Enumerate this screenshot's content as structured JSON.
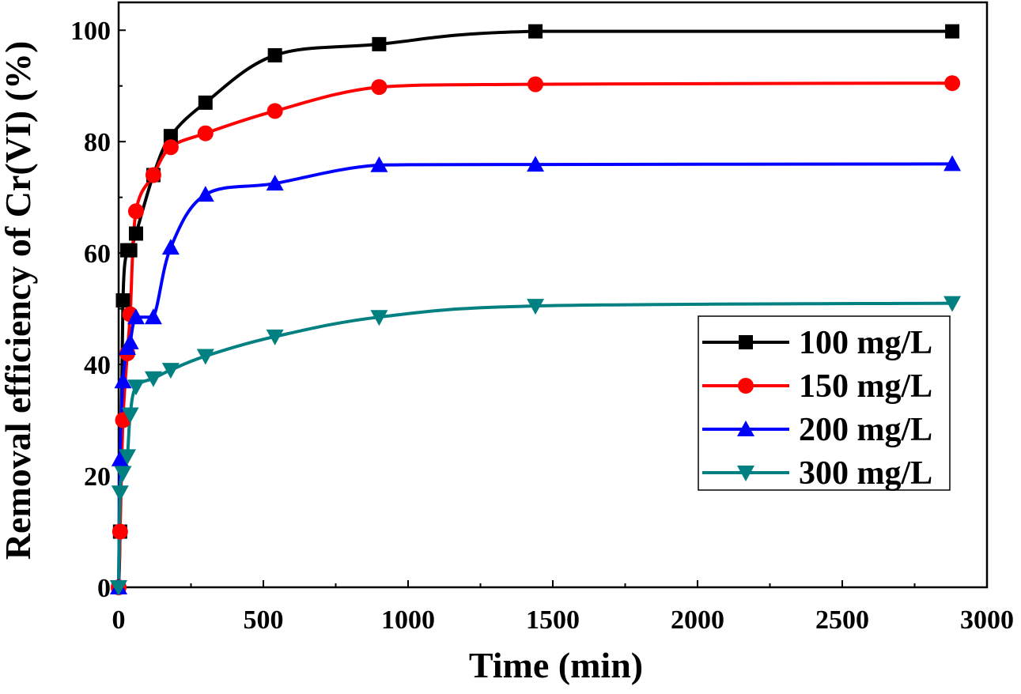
{
  "chart_data": {
    "type": "line",
    "xlabel": "Time (min)",
    "ylabel": "Removal efficiency of Cr(VI) (%)",
    "xlim": [
      0,
      3000
    ],
    "ylim": [
      0,
      105
    ],
    "xticks": [
      0,
      500,
      1000,
      1500,
      2000,
      2500,
      3000
    ],
    "xtick_labels": [
      "0",
      "500",
      "1000",
      "1500",
      "2000",
      "2500",
      "3000"
    ],
    "yticks": [
      0,
      20,
      40,
      60,
      80,
      100
    ],
    "ytick_labels": [
      "0",
      "20",
      "40",
      "60",
      "80",
      "100"
    ],
    "grid": false,
    "legend_position": "right",
    "series": [
      {
        "name": "100 mg/L",
        "color": "#000000",
        "marker": "square",
        "x": [
          0,
          5,
          15,
          30,
          40,
          60,
          120,
          180,
          300,
          540,
          900,
          1440,
          2880
        ],
        "y": [
          0,
          10,
          51.5,
          60.5,
          60.5,
          63.5,
          74,
          81,
          87,
          95.5,
          97.5,
          99.8,
          99.8
        ]
      },
      {
        "name": "150 mg/L",
        "color": "#ff0000",
        "marker": "circle",
        "x": [
          0,
          5,
          15,
          30,
          40,
          60,
          120,
          180,
          300,
          540,
          900,
          1440,
          2880
        ],
        "y": [
          0,
          10,
          30,
          42,
          49,
          67.5,
          74,
          79,
          81.5,
          85.5,
          89.8,
          90.3,
          90.5
        ]
      },
      {
        "name": "200 mg/L",
        "color": "#0000ff",
        "marker": "triangle-up",
        "x": [
          0,
          5,
          15,
          30,
          40,
          60,
          120,
          180,
          300,
          540,
          900,
          1440,
          2880
        ],
        "y": [
          0,
          23,
          37,
          43,
          44,
          48.5,
          48.5,
          61,
          70.5,
          72.5,
          75.8,
          75.9,
          76
        ]
      },
      {
        "name": "300 mg/L",
        "color": "#008080",
        "marker": "triangle-down",
        "x": [
          0,
          5,
          15,
          30,
          40,
          60,
          120,
          180,
          300,
          540,
          900,
          1440,
          2880
        ],
        "y": [
          0,
          17,
          20.5,
          23.5,
          31,
          36,
          37.5,
          39,
          41.5,
          45,
          48.5,
          50.5,
          51
        ]
      }
    ]
  }
}
